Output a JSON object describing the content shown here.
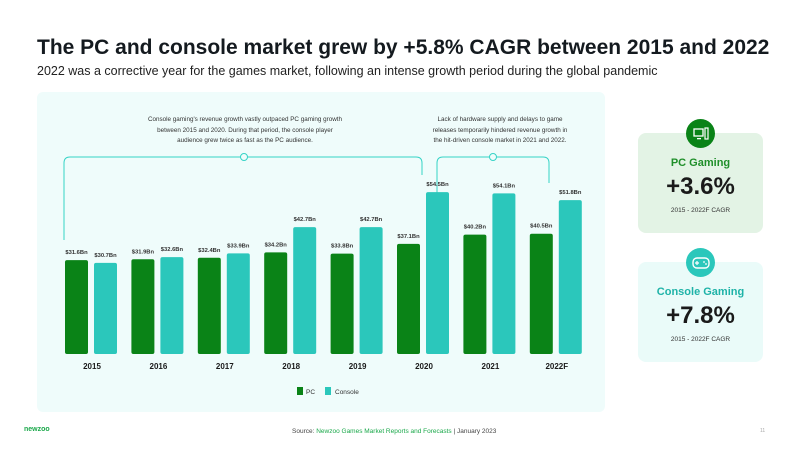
{
  "title": "The PC and console market grew by +5.8% CAGR between 2015 and 2022",
  "subtitle": "2022 was a corrective year for the games market, following an intense growth period during the global pandemic",
  "annotations": {
    "left": "Console gaming's revenue growth vastly outpaced PC gaming growth between 2015 and 2020. During that period, the console player audience grew twice as fast as the PC audience.",
    "right": "Lack of hardware supply and delays to game releases temporarily hindered revenue growth in the hit-driven console market in 2021 and 2022."
  },
  "chart_data": {
    "type": "bar",
    "categories": [
      "2015",
      "2016",
      "2017",
      "2018",
      "2019",
      "2020",
      "2021",
      "2022F"
    ],
    "series": [
      {
        "name": "PC",
        "color": "#0a8317",
        "values": [
          31.6,
          31.9,
          32.4,
          34.2,
          33.8,
          37.1,
          40.2,
          40.5
        ],
        "labels": [
          "$31.6Bn",
          "$31.9Bn",
          "$32.4Bn",
          "$34.2Bn",
          "$33.8Bn",
          "$37.1Bn",
          "$40.2Bn",
          "$40.5Bn"
        ]
      },
      {
        "name": "Console",
        "color": "#2bc7bb",
        "values": [
          30.7,
          32.6,
          33.9,
          42.7,
          42.7,
          54.5,
          54.1,
          51.8
        ],
        "labels": [
          "$30.7Bn",
          "$32.6Bn",
          "$33.9Bn",
          "$42.7Bn",
          "$42.7Bn",
          "$54.5Bn",
          "$54.1Bn",
          "$51.8Bn"
        ]
      }
    ],
    "ylim": [
      0,
      60
    ],
    "legend": "bottom-center"
  },
  "cards": [
    {
      "label": "PC Gaming",
      "value": "+3.6%",
      "sub": "2015 - 2022F CAGR",
      "icon": "pc-icon"
    },
    {
      "label": "Console Gaming",
      "value": "+7.8%",
      "sub": "2015 - 2022F CAGR",
      "icon": "gamepad-icon"
    }
  ],
  "footer": {
    "logo": "newzoo",
    "source_prefix": "Source: ",
    "source_link": "Newzoo Games Market Reports and Forecasts",
    "source_suffix": " | January 2023",
    "page": "11"
  }
}
